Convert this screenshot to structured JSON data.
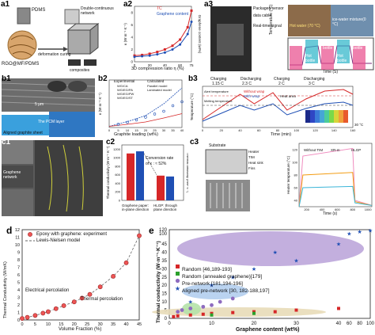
{
  "panels": {
    "a1": {
      "label": "a1",
      "pdms": "PDMS",
      "network": "Double-continuous network",
      "deform": "deformation curing",
      "rgo": "RGO@MF/PDMS",
      "composites": "composites"
    },
    "a2": {
      "label": "a2",
      "legend_tc": "TC",
      "legend_gc": "Graphene content",
      "xlabel": "3D compression ratio η (%)",
      "ylabel_left": "κ (W m⁻¹ K⁻¹)",
      "ylabel_right": "Graphene content (wt%)",
      "x": [
        0,
        10,
        20,
        30,
        40,
        50,
        60,
        70,
        75
      ],
      "tc": [
        1.0,
        1.1,
        1.3,
        1.6,
        2.0,
        2.6,
        3.6,
        5.6,
        8.3
      ],
      "gc": [
        0.8,
        0.9,
        1.0,
        1.2,
        1.5,
        2.0,
        2.8,
        4.5,
        6.5
      ],
      "xticks": [
        "0",
        "10",
        "20",
        "30",
        "40",
        "50",
        "60",
        "70",
        "75"
      ],
      "yticks": [
        "0",
        "2",
        "4",
        "6",
        "8"
      ]
    },
    "a3": {
      "label": "a3",
      "sensor": "Packaged sensor",
      "cable": "data cable",
      "signal": "Real-time signal",
      "hot": "Hot water (70 °C)",
      "ice": "ice-water mixture(0 °C)",
      "cold1": "Cold bottle",
      "cold2": "Cold bottle",
      "hot1": "Hot bottle",
      "hot2": "Hot bottle",
      "ylabel": "Temperature (°C)",
      "xlabel": "Time (S)"
    },
    "b1": {
      "label": "b1",
      "scale": "5 μm",
      "aligned": "Aligned graphite sheet",
      "pcm": "The PCM layer"
    },
    "b2": {
      "label": "b2",
      "exp_title": "Experimental",
      "calc_title": "Calculated",
      "exp_items": [
        "WG/CA",
        "WG/EG/PA",
        "WG/EG/PW",
        "WG/EG/ST"
      ],
      "calc_items": [
        "Parallel model",
        "Laminated model"
      ],
      "xlabel": "Graphite loading (wt%)",
      "ylabel": "κ (W m⁻¹ K⁻¹)",
      "xticks": [
        "0",
        "5",
        "10",
        "15",
        "20",
        "25",
        "30",
        "35",
        "40"
      ]
    },
    "b3": {
      "label": "b3",
      "charging1": "Charging",
      "charging1c": "1.15 C",
      "discharging1": "Discharging",
      "discharging1c": "2.3 C",
      "charging2": "Charging",
      "charging2c": "2 C",
      "discharging2": "Discharging",
      "discharging2c": "3 C",
      "legend1": "Without wrap",
      "legend2": "With wrap",
      "alert": "Alert temperature",
      "melting": "Melting temperature",
      "heat": "Heat area",
      "ylabel": "Temperature (°C)",
      "xlabel": "Time (min)",
      "xticks": [
        "0",
        "20",
        "40",
        "60",
        "80",
        "100",
        "120",
        "140",
        "160"
      ],
      "colorbar": "30 °C"
    },
    "c1": {
      "label": "c1",
      "graphene": "Graphene",
      "network": "network"
    },
    "c2": {
      "label": "c2",
      "conv": "Conversion rate",
      "conv2": "of κ : ≈ 52%",
      "ylabel_left": "Thermal conductivity (W m⁻¹ K⁻¹)",
      "ylabel_right": "Thermal diffusivity (mm² s⁻¹)",
      "cat1": "Graphene paper: in-plane direction",
      "cat2": "HLGP: through plane direction",
      "values": [
        1100,
        1150,
        580,
        560
      ],
      "yticks": [
        "0",
        "200",
        "400",
        "600",
        "800",
        "1000",
        "1200"
      ]
    },
    "c3": {
      "label": "c3",
      "substrate": "Substrate",
      "heater": "Heater",
      "tim": "TIM",
      "heat_sink": "Heat sink",
      "fins": "Fins",
      "legend1": "Without TIM",
      "legend2": "XR-m",
      "legend3": "HLGP",
      "ylabel": "Heater temperature (°C)",
      "xlabel": "Time (s)",
      "xticks": [
        "200",
        "400",
        "600",
        "800",
        "1000"
      ],
      "yticks": [
        "40",
        "60",
        "80",
        "100",
        "120"
      ]
    },
    "d": {
      "label": "d",
      "legend1": "Epoxy with graphene: experiment",
      "legend2": "Lewis-Nielsen model",
      "ep": "Electrical percolation",
      "tp": "Thermal percolation",
      "xlabel": "Volume Fraction (%)",
      "ylabel": "Thermal Conductivity (W/mK)",
      "xticks": [
        "0",
        "5",
        "10",
        "15",
        "20",
        "25",
        "30",
        "35",
        "40",
        "45"
      ],
      "yticks": [
        "0",
        "1",
        "2",
        "3",
        "4",
        "5",
        "6",
        "7",
        "8",
        "9",
        "10",
        "11",
        "12"
      ]
    },
    "e": {
      "label": "e",
      "legend1": "Random [46,189-193]",
      "legend2": "Random (annealed graphene)[179]",
      "legend3": "Pre-network [181,194-196]",
      "legend4": "Aligned pre-network [30, 182-188,197]",
      "xlabel": "Graphene content (wt%)",
      "ylabel": "Thermal conductivity (W·m⁻¹·K⁻¹)",
      "xticks": [
        "0",
        "10",
        "20",
        "30",
        "40",
        "60",
        "80",
        "100"
      ],
      "yticks": [
        "0",
        "5",
        "10",
        "15",
        "20",
        "25",
        "30",
        "35",
        "40",
        "45",
        "100",
        "120"
      ]
    }
  },
  "chart_data": [
    {
      "type": "scatter",
      "title": "",
      "xlabel": "Volume Fraction (%)",
      "ylabel": "Thermal Conductivity (W/mK)",
      "series": [
        {
          "name": "Epoxy with graphene: experiment",
          "x": [
            0,
            2,
            5,
            8,
            10,
            13,
            16,
            20,
            23,
            26,
            30,
            35,
            40,
            45
          ],
          "y": [
            0.2,
            0.35,
            0.6,
            0.9,
            1.1,
            1.5,
            1.9,
            2.4,
            2.9,
            3.4,
            4.4,
            5.8,
            7.6,
            11.2
          ]
        }
      ],
      "xlim": [
        0,
        45
      ],
      "ylim": [
        0,
        12
      ]
    },
    {
      "type": "scatter",
      "title": "",
      "xlabel": "Graphene content (wt%)",
      "ylabel": "Thermal conductivity (W·m⁻¹·K⁻¹)",
      "series": [
        {
          "name": "Random [46,189-193]",
          "x": [
            1,
            2,
            5,
            8,
            10,
            15,
            20,
            25,
            30,
            40
          ],
          "y": [
            1,
            1.5,
            2,
            2.5,
            3,
            3.5,
            4,
            4,
            5,
            6
          ]
        },
        {
          "name": "Random (annealed graphene)[179]",
          "x": [
            10,
            20
          ],
          "y": [
            2,
            3
          ]
        },
        {
          "name": "Pre-network [181,194-196]",
          "x": [
            2,
            3,
            5,
            8,
            10,
            12,
            15
          ],
          "y": [
            4,
            5,
            6,
            7,
            8,
            10,
            12
          ]
        },
        {
          "name": "Aligned pre-network [30, 182-188,197]",
          "x": [
            5,
            10,
            15,
            20,
            25,
            30,
            40,
            60,
            80,
            100
          ],
          "y": [
            10,
            20,
            25,
            30,
            40,
            35,
            45,
            100,
            110,
            115
          ]
        }
      ],
      "xlim": [
        0,
        100
      ],
      "ylim": [
        0,
        120
      ]
    }
  ],
  "colors": {
    "red": "#d62728",
    "blue": "#1f4fb4",
    "green": "#2ca02c",
    "purple": "#8e6bbf",
    "orange": "#f39c12",
    "pink": "#e84a8a",
    "lavender": "#b49bd6",
    "lightblue": "#a9c8ec",
    "tan": "#e8dcb8",
    "lightgreen": "#b5e2a8"
  }
}
